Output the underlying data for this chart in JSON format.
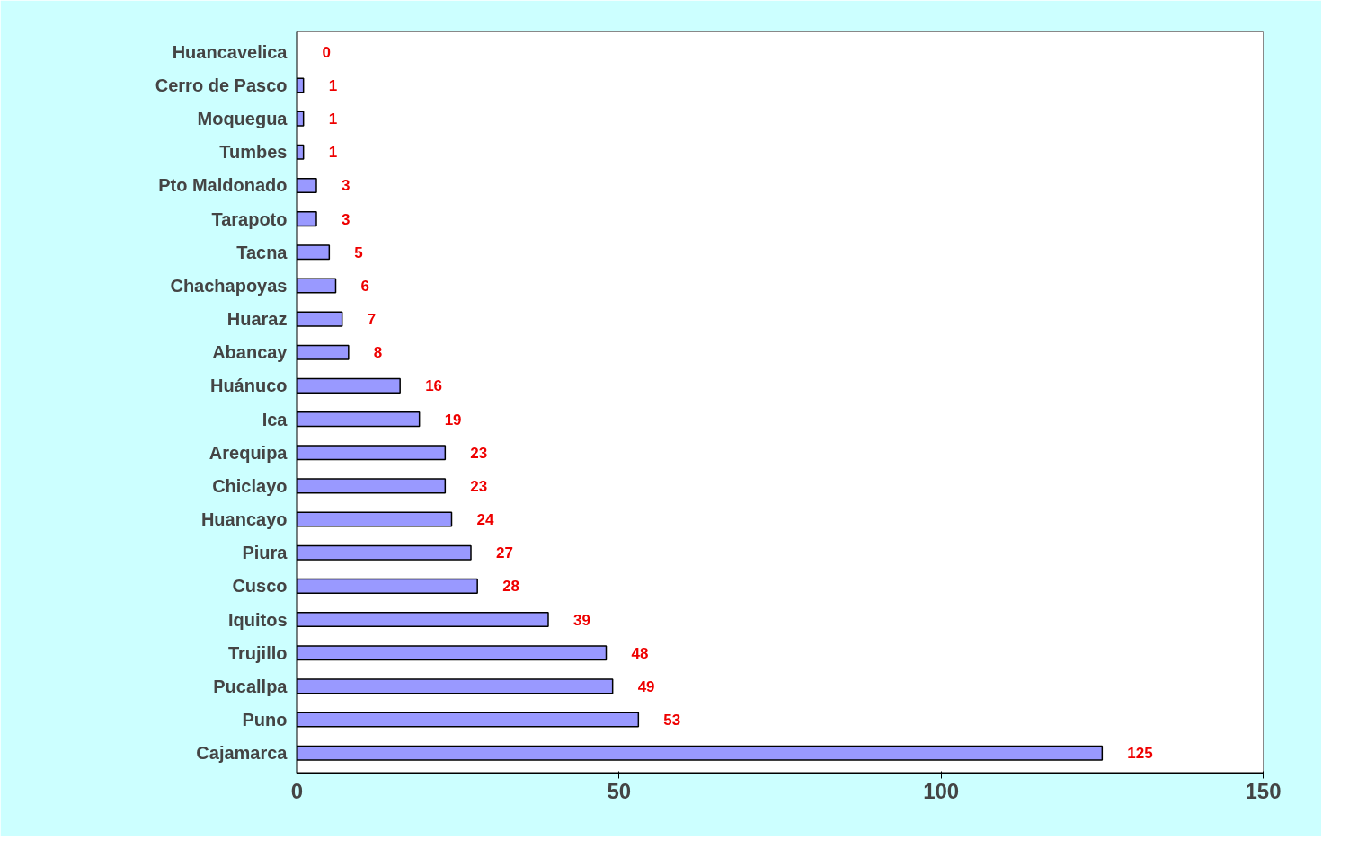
{
  "chart_data": {
    "type": "bar",
    "orientation": "horizontal",
    "data_labels": true,
    "grid": false,
    "categories": [
      "Huancavelica",
      "Cerro de Pasco",
      "Moquegua",
      "Tumbes",
      "Pto Maldonado",
      "Tarapoto",
      "Tacna",
      "Chachapoyas",
      "Huaraz",
      "Abancay",
      "Huánuco",
      "Ica",
      "Arequipa",
      "Chiclayo",
      "Huancayo",
      "Piura",
      "Cusco",
      "Iquitos",
      "Trujillo",
      "Pucallpa",
      "Puno",
      "Cajamarca"
    ],
    "values": [
      0,
      1,
      1,
      1,
      3,
      3,
      5,
      6,
      7,
      8,
      16,
      19,
      23,
      23,
      24,
      27,
      28,
      39,
      48,
      49,
      53,
      125
    ],
    "color": "#9999ff",
    "xlim": [
      0,
      150
    ],
    "xticks": [
      0,
      50,
      100,
      150
    ]
  }
}
